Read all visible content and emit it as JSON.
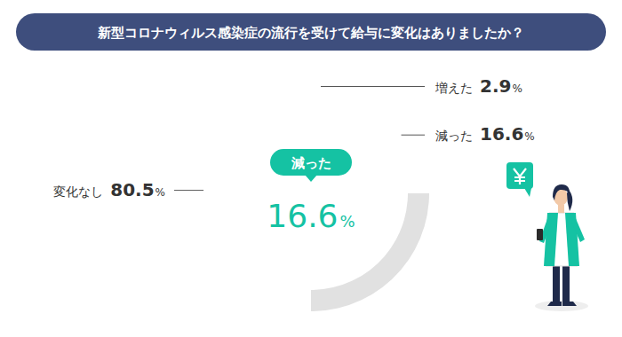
{
  "chart_data": {
    "type": "pie",
    "title": "新型コロナウィルス感染症の流行を受けて給与に変化はありましたか？",
    "categories": [
      "増えた",
      "減った",
      "変化なし"
    ],
    "values": [
      2.9,
      16.6,
      80.5
    ],
    "value_labels": [
      "2.9%",
      "16.6%",
      "80.5%"
    ],
    "colors": [
      "#8fd6c8",
      "#15c2a3",
      "#e1e1e1"
    ],
    "data_labels": true,
    "annotations": [
      {
        "text": "減った",
        "value": 16.6,
        "value_label": "16.6%"
      }
    ]
  }
}
